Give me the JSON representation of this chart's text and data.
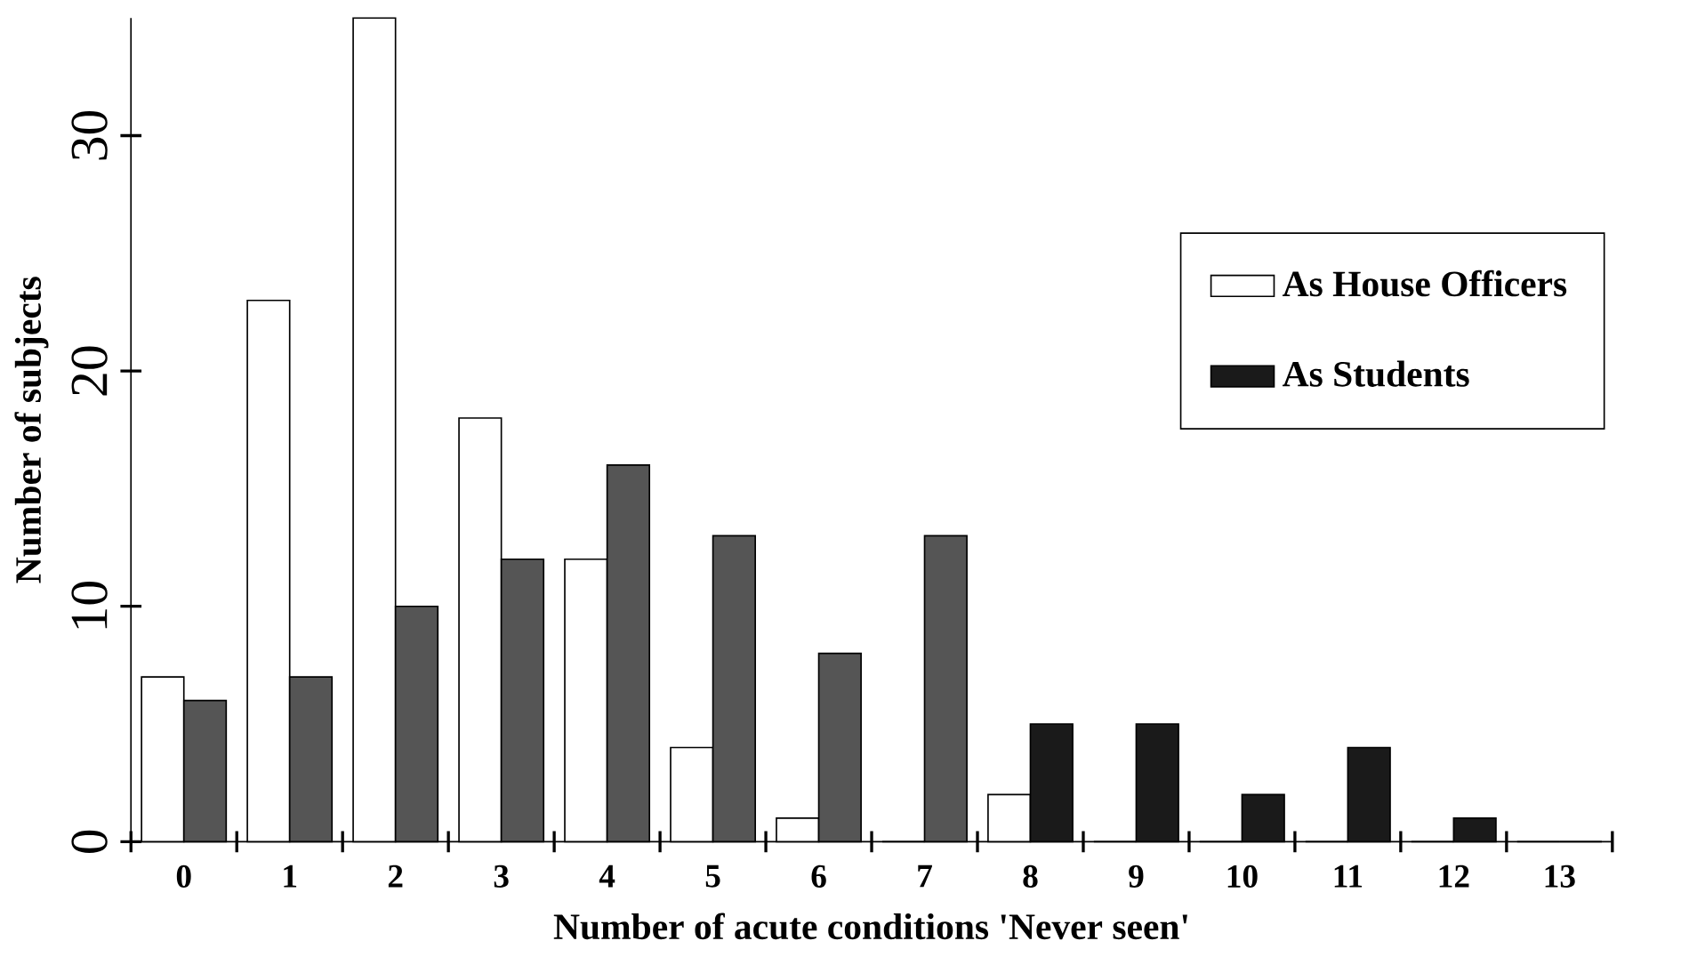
{
  "chart_data": {
    "type": "bar",
    "xlabel": "Number of acute conditions 'Never seen'",
    "ylabel": "Number of subjects",
    "categories": [
      "0",
      "1",
      "2",
      "3",
      "4",
      "5",
      "6",
      "7",
      "8",
      "9",
      "10",
      "11",
      "12",
      "13"
    ],
    "series": [
      {
        "name": "As House Officers",
        "color": "#ffffff",
        "values": [
          7,
          23,
          35,
          18,
          12,
          4,
          1,
          0,
          2,
          0,
          0,
          0,
          0,
          0
        ]
      },
      {
        "name": "As Students",
        "color": "#1a1a1a",
        "colors": [
          "#555555",
          "#555555",
          "#555555",
          "#555555",
          "#555555",
          "#555555",
          "#555555",
          "#555555",
          "#1a1a1a",
          "#1a1a1a",
          "#1a1a1a",
          "#1a1a1a",
          "#1a1a1a",
          "#1a1a1a"
        ],
        "values": [
          6,
          7,
          10,
          12,
          16,
          13,
          8,
          13,
          5,
          5,
          2,
          4,
          1,
          0
        ]
      }
    ],
    "ylim": [
      0,
      35
    ],
    "yticks": [
      0,
      10,
      20,
      30
    ],
    "legend": "right",
    "grid": false
  }
}
